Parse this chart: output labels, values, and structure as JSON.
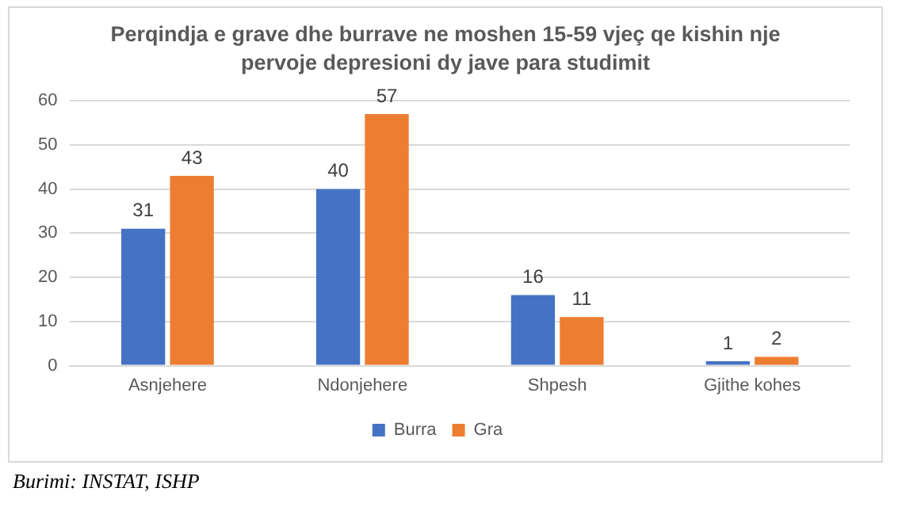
{
  "chart_data": {
    "type": "bar",
    "title": "Perqindja e grave dhe burrave ne moshen 15-59 vjeç qe kishin nje pervoje depresioni dy jave para studimit",
    "categories": [
      "Asnjehere",
      "Ndonjehere",
      "Shpesh",
      "Gjithe kohes"
    ],
    "series": [
      {
        "name": "Burra",
        "color": "#4472c4",
        "values": [
          31,
          40,
          16,
          1
        ]
      },
      {
        "name": "Gra",
        "color": "#ed7d31",
        "values": [
          43,
          57,
          11,
          2
        ]
      }
    ],
    "ylim": [
      0,
      60
    ],
    "yticks": [
      0,
      10,
      20,
      30,
      40,
      50,
      60
    ],
    "grid": "y",
    "legend": "bottom",
    "data_labels": true,
    "annotations": [
      "Burimi: INSTAT, ISHP"
    ]
  }
}
